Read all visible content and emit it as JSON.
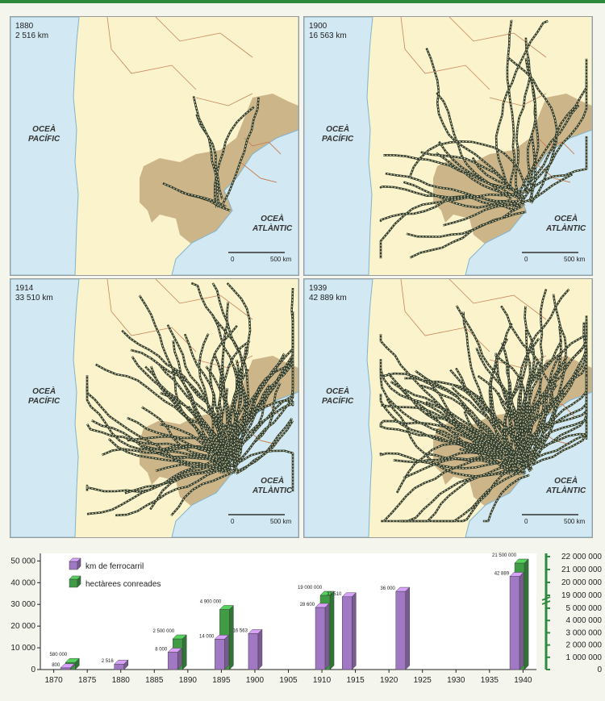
{
  "maps": [
    {
      "year": "1880",
      "km": "2 516 km",
      "ocean_pacific": [
        "OCEÀ",
        "PACÍFIC"
      ],
      "ocean_atlantic": [
        "OCEÀ",
        "ATLÀNTIC"
      ],
      "scale_zero": "0",
      "scale_label": "500 km"
    },
    {
      "year": "1900",
      "km": "16 563 km",
      "ocean_pacific": [
        "OCEÀ",
        "PACÍFIC"
      ],
      "ocean_atlantic": [
        "OCEÀ",
        "ATLÀNTIC"
      ],
      "scale_zero": "0",
      "scale_label": "500 km"
    },
    {
      "year": "1914",
      "km": "33 510 km",
      "ocean_pacific": [
        "OCEÀ",
        "PACÍFIC"
      ],
      "ocean_atlantic": [
        "OCEÀ",
        "ATLÀNTIC"
      ],
      "scale_zero": "0",
      "scale_label": "500 km"
    },
    {
      "year": "1939",
      "km": "42 889 km",
      "ocean_pacific": [
        "OCEÀ",
        "PACÍFIC"
      ],
      "ocean_atlantic": [
        "OCEÀ",
        "ATLÀNTIC"
      ],
      "scale_zero": "0",
      "scale_label": "500 km"
    }
  ],
  "colors": {
    "ocean": "#d2e9f3",
    "land": "#fbf3cc",
    "pampas": "#cdb58a",
    "railway": "#2f3a2a",
    "km_bar": "#a178c4",
    "ha_bar": "#3f9c45",
    "right_axis": "#2e8b3e"
  },
  "chart_data": {
    "type": "bar",
    "legend": [
      "km de ferrocarril",
      "hectàrees conreades"
    ],
    "legend_position": "top-left",
    "x_ticks": [
      "1870",
      "1875",
      "1880",
      "1885",
      "1890",
      "1895",
      "1900",
      "1905",
      "1910",
      "1915",
      "1920",
      "1925",
      "1930",
      "1935",
      "1940"
    ],
    "xlim": [
      1868,
      1942
    ],
    "left_axis": {
      "ticks": [
        "0",
        "10 000",
        "20 000",
        "30 000",
        "40 000",
        "50 000"
      ],
      "ylim": [
        0,
        52000
      ]
    },
    "right_axis": {
      "ticks": [
        "0",
        "1 000 000",
        "2 000 000",
        "3 000 000",
        "4 000 000",
        "5 000 000",
        "19 000 000",
        "20 000 000",
        "21 000 000",
        "22 000 000"
      ],
      "break_between": [
        "5 000 000",
        "19 000 000"
      ]
    },
    "series": [
      {
        "name": "km de ferrocarril",
        "points": [
          {
            "year": 1872,
            "value": 800,
            "label": "800"
          },
          {
            "year": 1880,
            "value": 2516,
            "label": "2 516"
          },
          {
            "year": 1888,
            "value": 8000,
            "label": "8 000"
          },
          {
            "year": 1895,
            "value": 14000,
            "label": "14 000"
          },
          {
            "year": 1900,
            "value": 16563,
            "label": "16 563"
          },
          {
            "year": 1910,
            "value": 28600,
            "label": "28 600"
          },
          {
            "year": 1914,
            "value": 33510,
            "label": "33 510"
          },
          {
            "year": 1922,
            "value": 36000,
            "label": "36 000"
          },
          {
            "year": 1939,
            "value": 42889,
            "label": "42 889"
          }
        ]
      },
      {
        "name": "hectàrees conreades",
        "points": [
          {
            "year": 1872,
            "value": 580000,
            "label": "580 000"
          },
          {
            "year": 1888,
            "value": 2500000,
            "label": "2 500 000"
          },
          {
            "year": 1895,
            "value": 4900000,
            "label": "4 900 000"
          },
          {
            "year": 1910,
            "value": 19000000,
            "label": "19 000 000"
          },
          {
            "year": 1939,
            "value": 21500000,
            "label": "21 500 000"
          }
        ]
      }
    ]
  }
}
